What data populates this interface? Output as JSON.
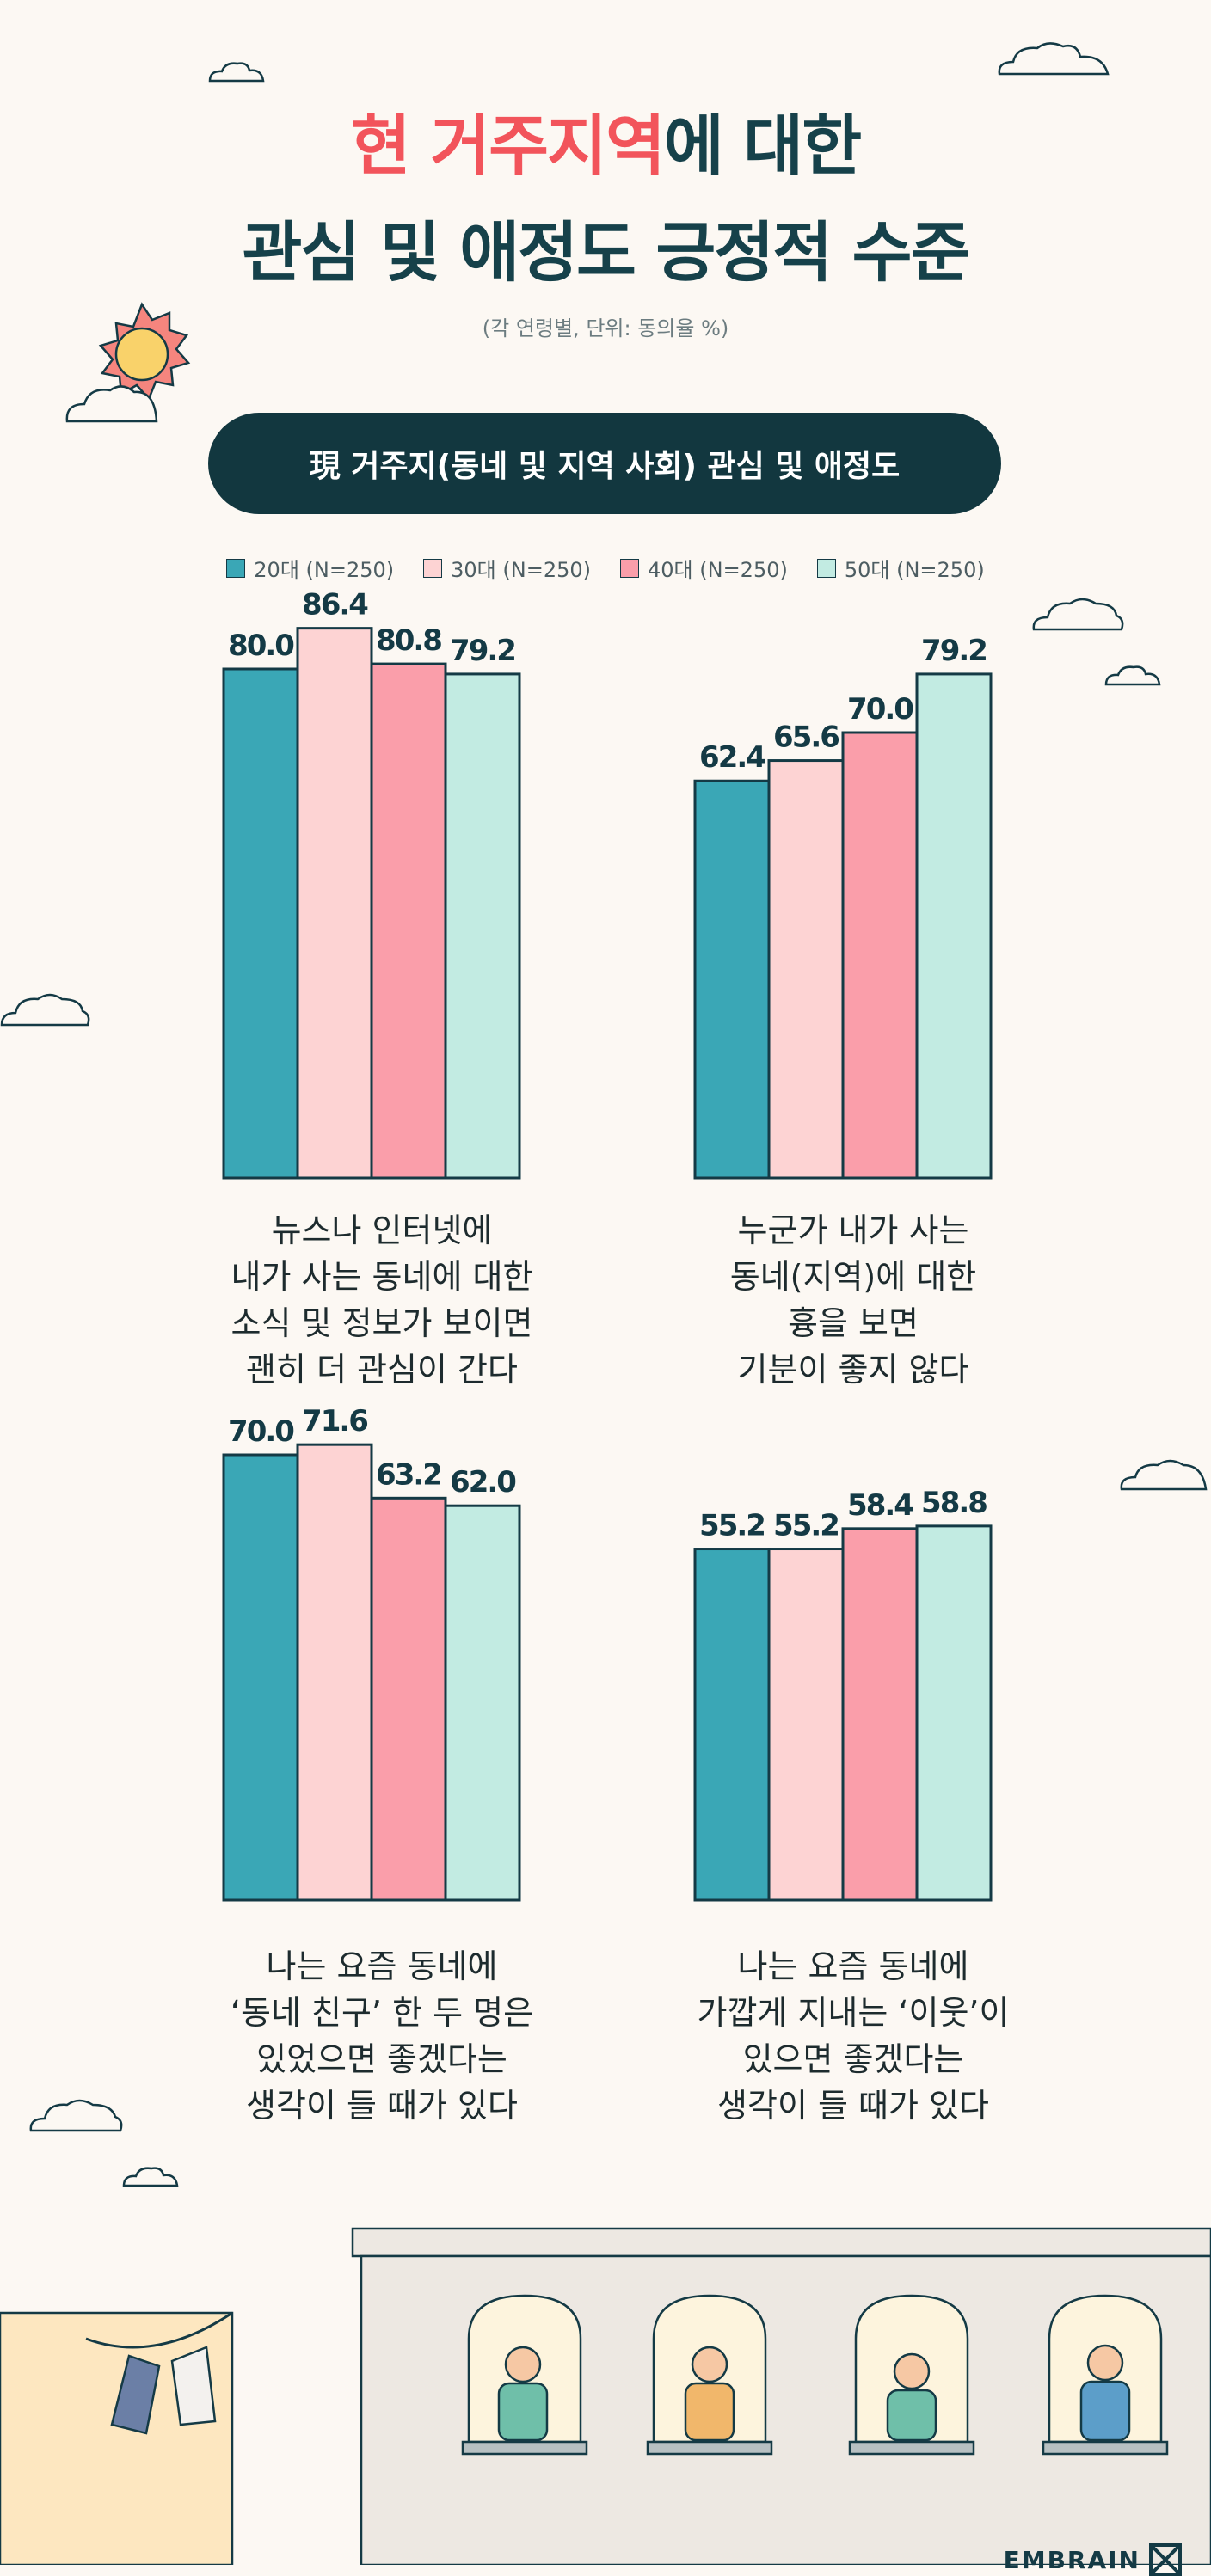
{
  "title": {
    "line1_highlight": "현 거주지역",
    "line1_rest": "에 대한",
    "line2": "관심 및 애정도 긍정적 수준"
  },
  "subnote": "(각 연령별, 단위: 동의율 %)",
  "section_title": "現 거주지(동네 및 지역 사회) 관심 및 애정도",
  "legend": [
    {
      "label": "20대 (N=250)",
      "color": "#3aa7b6"
    },
    {
      "label": "30대 (N=250)",
      "color": "#fdd3d3"
    },
    {
      "label": "40대 (N=250)",
      "color": "#fa9eaa"
    },
    {
      "label": "50대 (N=250)",
      "color": "#c2ebe2"
    }
  ],
  "chart_data": [
    {
      "type": "bar",
      "categories": [
        "20대 (N=250)",
        "30대 (N=250)",
        "40대 (N=250)",
        "50대 (N=250)"
      ],
      "values": [
        80.0,
        86.4,
        80.8,
        79.2
      ],
      "value_labels": [
        "80.0",
        "86.4",
        "80.8",
        "79.2"
      ],
      "caption": [
        "뉴스나 인터넷에",
        "내가 사는 동네에 대한",
        "소식 및 정보가 보이면",
        "괜히 더 관심이 간다"
      ]
    },
    {
      "type": "bar",
      "categories": [
        "20대 (N=250)",
        "30대 (N=250)",
        "40대 (N=250)",
        "50대 (N=250)"
      ],
      "values": [
        62.4,
        65.6,
        70.0,
        79.2
      ],
      "value_labels": [
        "62.4",
        "65.6",
        "70.0",
        "79.2"
      ],
      "caption": [
        "누군가 내가 사는",
        "동네(지역)에 대한",
        "흉을 보면",
        "기분이 좋지 않다"
      ]
    },
    {
      "type": "bar",
      "categories": [
        "20대 (N=250)",
        "30대 (N=250)",
        "40대 (N=250)",
        "50대 (N=250)"
      ],
      "values": [
        70.0,
        71.6,
        63.2,
        62.0
      ],
      "value_labels": [
        "70.0",
        "71.6",
        "63.2",
        "62.0"
      ],
      "caption": [
        "나는 요즘 동네에",
        "‘동네 친구’ 한 두 명은",
        "있었으면 좋겠다는",
        "생각이 들 때가 있다"
      ]
    },
    {
      "type": "bar",
      "categories": [
        "20대 (N=250)",
        "30대 (N=250)",
        "40대 (N=250)",
        "50대 (N=250)"
      ],
      "values": [
        55.2,
        55.2,
        58.4,
        58.8
      ],
      "value_labels": [
        "55.2",
        "55.2",
        "58.4",
        "58.8"
      ],
      "caption": [
        "나는 요즘 동네에",
        "가깝게 지내는 ‘이웃’이",
        "있으면 좋겠다는",
        "생각이 들 때가 있다"
      ]
    }
  ],
  "logo": {
    "text": "EMBRAIN"
  }
}
